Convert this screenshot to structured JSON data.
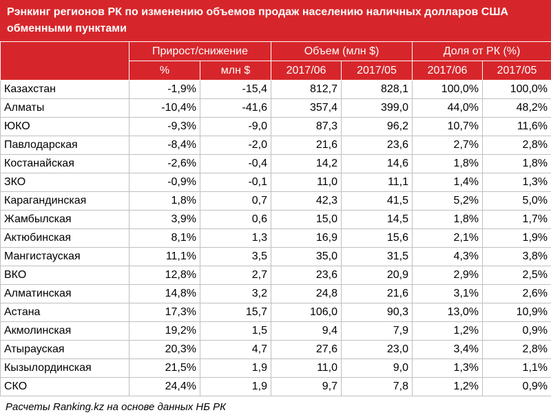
{
  "header": {
    "title": "Рэнкинг регионов РК по изменению объемов продаж населению наличных долларов США обменными пунктами"
  },
  "table": {
    "groups": [
      "Прирост/снижение",
      "Объем (млн $)",
      "Доля от РК (%)"
    ],
    "subheaders": [
      "%",
      "млн $",
      "2017/06",
      "2017/05",
      "2017/06",
      "2017/05"
    ],
    "rows": [
      [
        "Казахстан",
        "-1,9%",
        "-15,4",
        "812,7",
        "828,1",
        "100,0%",
        "100,0%"
      ],
      [
        "Алматы",
        "-10,4%",
        "-41,6",
        "357,4",
        "399,0",
        "44,0%",
        "48,2%"
      ],
      [
        "ЮКО",
        "-9,3%",
        "-9,0",
        "87,3",
        "96,2",
        "10,7%",
        "11,6%"
      ],
      [
        "Павлодарская",
        "-8,4%",
        "-2,0",
        "21,6",
        "23,6",
        "2,7%",
        "2,8%"
      ],
      [
        "Костанайская",
        "-2,6%",
        "-0,4",
        "14,2",
        "14,6",
        "1,8%",
        "1,8%"
      ],
      [
        "ЗКО",
        "-0,9%",
        "-0,1",
        "11,0",
        "11,1",
        "1,4%",
        "1,3%"
      ],
      [
        "Карагандинская",
        "1,8%",
        "0,7",
        "42,3",
        "41,5",
        "5,2%",
        "5,0%"
      ],
      [
        "Жамбылская",
        "3,9%",
        "0,6",
        "15,0",
        "14,5",
        "1,8%",
        "1,7%"
      ],
      [
        "Актюбинская",
        "8,1%",
        "1,3",
        "16,9",
        "15,6",
        "2,1%",
        "1,9%"
      ],
      [
        "Мангистауская",
        "11,1%",
        "3,5",
        "35,0",
        "31,5",
        "4,3%",
        "3,8%"
      ],
      [
        "ВКО",
        "12,8%",
        "2,7",
        "23,6",
        "20,9",
        "2,9%",
        "2,5%"
      ],
      [
        "Алматинская",
        "14,8%",
        "3,2",
        "24,8",
        "21,6",
        "3,1%",
        "2,6%"
      ],
      [
        "Астана",
        "17,3%",
        "15,7",
        "106,0",
        "90,3",
        "13,0%",
        "10,9%"
      ],
      [
        "Акмолинская",
        "19,2%",
        "1,5",
        "9,4",
        "7,9",
        "1,2%",
        "0,9%"
      ],
      [
        "Атырауская",
        "20,3%",
        "4,7",
        "27,6",
        "23,0",
        "3,4%",
        "2,8%"
      ],
      [
        "Кызылординская",
        "21,5%",
        "1,9",
        "11,0",
        "9,0",
        "1,3%",
        "1,1%"
      ],
      [
        "СКО",
        "24,4%",
        "1,9",
        "9,7",
        "7,8",
        "1,2%",
        "0,9%"
      ]
    ]
  },
  "footer": {
    "note": "Расчеты Ranking.kz на основе данных НБ РК"
  }
}
